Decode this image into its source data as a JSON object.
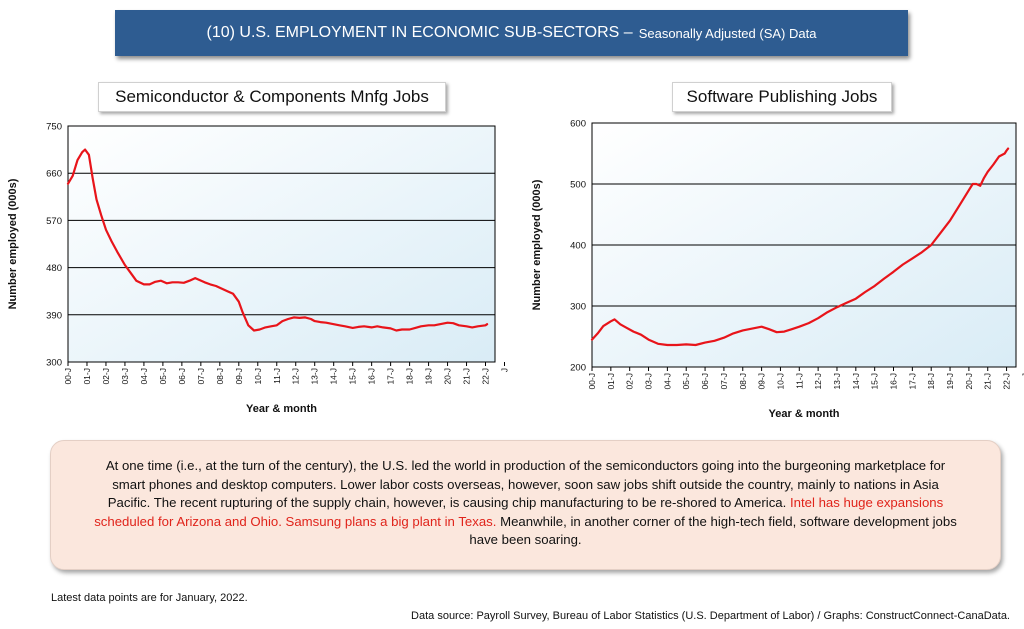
{
  "banner": {
    "main": "(10) U.S. EMPLOYMENT IN ECONOMIC SUB-SECTORS –",
    "sub": "Seasonally Adjusted (SA) Data"
  },
  "charts_text": {
    "left_title": "Semiconductor & Components Mnfg Jobs",
    "right_title": "Software Publishing Jobs"
  },
  "note": {
    "text1": "At one time (i.e., at the turn of the century), the U.S. led the world in production of the semiconductors going into the burgeoning marketplace for smart phones and desktop computers. Lower labor costs overseas, however, soon saw jobs shift outside the country, mainly to nations in Asia Pacific. The recent rupturing of the supply chain, however, is causing chip manufacturing to be re-shored to America. ",
    "red": "Intel has huge expansions scheduled for Arizona and Ohio. Samsung plans a big plant in Texas.",
    "text2": " Meanwhile, in another corner of the high-tech field, software development jobs have been soaring."
  },
  "footnote": "Latest data points are for January, 2022.",
  "source": "Data source: Payroll Survey, Bureau of Labor Statistics (U.S. Department of Labor) / Graphs: ConstructConnect-CanaData.",
  "colors": {
    "banner": "#2e5c91",
    "line": "#e8141a",
    "note_bg": "#fbe7dd",
    "note_red": "#e0241b"
  },
  "chart_data": [
    {
      "type": "line",
      "title": "Semiconductor & Components Mnfg Jobs",
      "xlabel": "Year & month",
      "ylabel": "Number employed (000s)",
      "ylim": [
        300,
        750
      ],
      "yticks": [
        300,
        390,
        480,
        570,
        660,
        750
      ],
      "xlim": [
        2000.0,
        2022.5
      ],
      "xtick_labels": [
        "00-J",
        "01-J",
        "02-J",
        "03-J",
        "04-J",
        "05-J",
        "06-J",
        "07-J",
        "08-J",
        "09-J",
        "10-J",
        "11-J",
        "12-J",
        "13-J",
        "14-J",
        "15-J",
        "16-J",
        "17-J",
        "18-J",
        "19-J",
        "20-J",
        "21-J",
        "22-J",
        "J"
      ],
      "series": [
        {
          "x": [
            2000.0,
            2000.25,
            2000.5,
            2000.75,
            2000.9,
            2001.1,
            2001.3,
            2001.5,
            2001.75,
            2002.0,
            2002.3,
            2002.6,
            2003.0,
            2003.3,
            2003.6,
            2004.0,
            2004.3,
            2004.6,
            2004.9,
            2005.2,
            2005.5,
            2005.8,
            2006.1,
            2006.4,
            2006.7,
            2006.9,
            2007.2,
            2007.5,
            2007.8,
            2008.1,
            2008.4,
            2008.7,
            2009.0,
            2009.2,
            2009.5,
            2009.8,
            2010.1,
            2010.4,
            2010.7,
            2011.0,
            2011.3,
            2011.6,
            2011.9,
            2012.2,
            2012.5,
            2012.8,
            2013.0,
            2013.3,
            2013.6,
            2014.0,
            2014.3,
            2014.6,
            2015.0,
            2015.3,
            2015.6,
            2016.0,
            2016.3,
            2016.6,
            2017.0,
            2017.3,
            2017.6,
            2018.0,
            2018.3,
            2018.6,
            2019.0,
            2019.3,
            2019.6,
            2020.0,
            2020.3,
            2020.6,
            2021.0,
            2021.3,
            2021.6,
            2022.0,
            2022.083
          ],
          "y": [
            640,
            655,
            685,
            700,
            705,
            695,
            650,
            610,
            580,
            552,
            530,
            510,
            485,
            470,
            455,
            448,
            448,
            453,
            455,
            450,
            452,
            452,
            451,
            455,
            460,
            457,
            452,
            448,
            445,
            440,
            435,
            430,
            415,
            395,
            370,
            360,
            362,
            366,
            368,
            370,
            378,
            382,
            385,
            384,
            385,
            382,
            378,
            376,
            375,
            372,
            370,
            368,
            365,
            367,
            368,
            366,
            368,
            366,
            364,
            360,
            362,
            362,
            365,
            368,
            370,
            370,
            372,
            375,
            374,
            370,
            368,
            366,
            368,
            370,
            372
          ]
        }
      ]
    },
    {
      "type": "line",
      "title": "Software Publishing Jobs",
      "xlabel": "Year & month",
      "ylabel": "Number employed (000s)",
      "ylim": [
        200,
        600
      ],
      "yticks": [
        200,
        300,
        400,
        500,
        600
      ],
      "xlim": [
        2000.0,
        2022.5
      ],
      "xtick_labels": [
        "00-J",
        "01-J",
        "02-J",
        "03-J",
        "04-J",
        "05-J",
        "06-J",
        "07-J",
        "08-J",
        "09-J",
        "10-J",
        "11-J",
        "12-J",
        "13-J",
        "14-J",
        "15-J",
        "16-J",
        "17-J",
        "18-J",
        "19-J",
        "20-J",
        "21-J",
        "22-J",
        "J"
      ],
      "series": [
        {
          "x": [
            2000.0,
            2000.3,
            2000.6,
            2001.0,
            2001.2,
            2001.5,
            2001.8,
            2002.2,
            2002.6,
            2003.0,
            2003.5,
            2004.0,
            2004.5,
            2005.0,
            2005.5,
            2006.0,
            2006.5,
            2007.0,
            2007.5,
            2008.0,
            2008.5,
            2009.0,
            2009.4,
            2009.8,
            2010.2,
            2010.6,
            2011.0,
            2011.5,
            2012.0,
            2012.5,
            2013.0,
            2013.5,
            2014.0,
            2014.5,
            2015.0,
            2015.5,
            2016.0,
            2016.5,
            2017.0,
            2017.5,
            2018.0,
            2018.5,
            2019.0,
            2019.5,
            2020.0,
            2020.2,
            2020.4,
            2020.6,
            2020.8,
            2021.0,
            2021.3,
            2021.6,
            2021.9,
            2022.0,
            2022.083
          ],
          "y": [
            245,
            255,
            267,
            275,
            278,
            270,
            265,
            258,
            253,
            245,
            238,
            236,
            236,
            237,
            236,
            240,
            243,
            248,
            255,
            260,
            263,
            266,
            262,
            257,
            258,
            262,
            266,
            272,
            280,
            290,
            298,
            305,
            312,
            323,
            333,
            345,
            356,
            368,
            378,
            388,
            400,
            420,
            440,
            465,
            490,
            500,
            500,
            497,
            510,
            520,
            532,
            545,
            550,
            555,
            558
          ]
        }
      ]
    }
  ]
}
